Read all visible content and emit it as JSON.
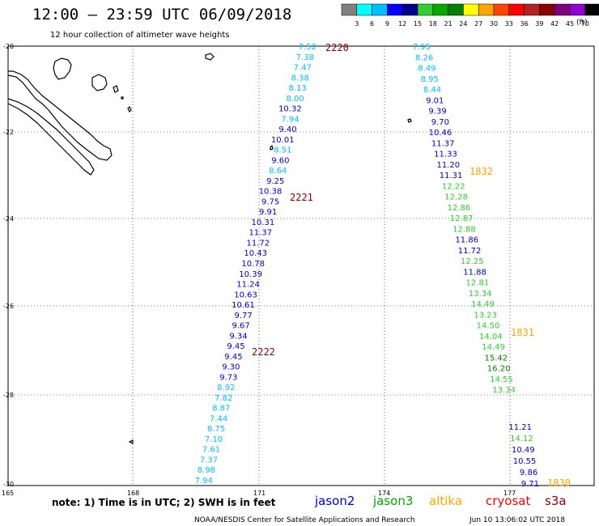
{
  "title": "12:00 – 23:59 UTC 06/09/2018",
  "subtitle": "12 hour collection of altimeter wave heights",
  "legend": {
    "unit": "(ft)",
    "colors": [
      "#808080",
      "#00ffff",
      "#00bfff",
      "#0000ff",
      "#00008b",
      "#32cd32",
      "#00aa00",
      "#008000",
      "#ffff00",
      "#ffa500",
      "#ff4500",
      "#ff0000",
      "#b22222",
      "#8b0000",
      "#800080",
      "#9400d3",
      "#000000"
    ],
    "labels": [
      "3",
      "6",
      "9",
      "12",
      "15",
      "18",
      "21",
      "24",
      "27",
      "30",
      "33",
      "36",
      "39",
      "42",
      "45",
      "70"
    ]
  },
  "axes": {
    "lat_labels": [
      "-20",
      "-22",
      "-24",
      "-26",
      "-28",
      "-30"
    ],
    "lon_labels": [
      "165",
      "168",
      "171",
      "174",
      "177"
    ]
  },
  "track_a": {
    "color_key": "jason2",
    "values": [
      {
        "v": "7.52",
        "c": "#00bfff"
      },
      {
        "v": "7.38",
        "c": "#00bfff"
      },
      {
        "v": "7.47",
        "c": "#00bfff"
      },
      {
        "v": "8.38",
        "c": "#00bfff"
      },
      {
        "v": "8.13",
        "c": "#00bfff"
      },
      {
        "v": "8.00",
        "c": "#00bfff"
      },
      {
        "v": "10.32",
        "c": "#0000cd"
      },
      {
        "v": "7.94",
        "c": "#00bfff"
      },
      {
        "v": "9.40",
        "c": "#0000cd"
      },
      {
        "v": "10.01",
        "c": "#0000cd"
      },
      {
        "v": "8.51",
        "c": "#00bfff"
      },
      {
        "v": "9.60",
        "c": "#0000cd"
      },
      {
        "v": "8.64",
        "c": "#00bfff"
      },
      {
        "v": "9.25",
        "c": "#0000cd"
      },
      {
        "v": "10.38",
        "c": "#0000cd"
      },
      {
        "v": "9.75",
        "c": "#0000cd"
      },
      {
        "v": "9.91",
        "c": "#0000cd"
      },
      {
        "v": "10.31",
        "c": "#0000cd"
      },
      {
        "v": "11.37",
        "c": "#0000cd"
      },
      {
        "v": "11.72",
        "c": "#0000cd"
      },
      {
        "v": "10.43",
        "c": "#0000cd"
      },
      {
        "v": "10.78",
        "c": "#0000cd"
      },
      {
        "v": "10.39",
        "c": "#0000cd"
      },
      {
        "v": "11.24",
        "c": "#0000cd"
      },
      {
        "v": "10.63",
        "c": "#0000cd"
      },
      {
        "v": "10.61",
        "c": "#0000cd"
      },
      {
        "v": "9.77",
        "c": "#0000cd"
      },
      {
        "v": "9.67",
        "c": "#0000cd"
      },
      {
        "v": "9.34",
        "c": "#0000cd"
      },
      {
        "v": "9.45",
        "c": "#0000cd"
      },
      {
        "v": "9.45",
        "c": "#0000cd"
      },
      {
        "v": "9.30",
        "c": "#0000cd"
      },
      {
        "v": "9.73",
        "c": "#0000cd"
      },
      {
        "v": "8.92",
        "c": "#00bfff"
      },
      {
        "v": "7.82",
        "c": "#00bfff"
      },
      {
        "v": "8.87",
        "c": "#00bfff"
      },
      {
        "v": "7.44",
        "c": "#00bfff"
      },
      {
        "v": "8.75",
        "c": "#00bfff"
      },
      {
        "v": "7.10",
        "c": "#00bfff"
      },
      {
        "v": "7.61",
        "c": "#00bfff"
      },
      {
        "v": "7.37",
        "c": "#00bfff"
      },
      {
        "v": "8.98",
        "c": "#00bfff"
      },
      {
        "v": "7.94",
        "c": "#00bfff"
      }
    ],
    "markers": [
      {
        "text": "2220",
        "color": "#8b0000"
      },
      {
        "text": "2221",
        "color": "#8b0000"
      },
      {
        "text": "2222",
        "color": "#8b0000"
      }
    ]
  },
  "track_b": {
    "values": [
      {
        "v": "7.95",
        "c": "#00bfff"
      },
      {
        "v": "8.26",
        "c": "#00bfff"
      },
      {
        "v": "8.49",
        "c": "#00bfff"
      },
      {
        "v": "8.95",
        "c": "#00bfff"
      },
      {
        "v": "8.44",
        "c": "#00bfff"
      },
      {
        "v": "9.01",
        "c": "#0000cd"
      },
      {
        "v": "9.39",
        "c": "#0000cd"
      },
      {
        "v": "9.70",
        "c": "#0000cd"
      },
      {
        "v": "10.46",
        "c": "#0000cd"
      },
      {
        "v": "11.37",
        "c": "#0000cd"
      },
      {
        "v": "11.33",
        "c": "#0000cd"
      },
      {
        "v": "11.20",
        "c": "#0000cd"
      },
      {
        "v": "11.31",
        "c": "#0000cd"
      },
      {
        "v": "12.22",
        "c": "#32cd32"
      },
      {
        "v": "12.28",
        "c": "#32cd32"
      },
      {
        "v": "12.86",
        "c": "#32cd32"
      },
      {
        "v": "12.87",
        "c": "#32cd32"
      },
      {
        "v": "12.88",
        "c": "#32cd32"
      },
      {
        "v": "11.86",
        "c": "#0000cd"
      },
      {
        "v": "11.72",
        "c": "#0000cd"
      },
      {
        "v": "12.25",
        "c": "#32cd32"
      },
      {
        "v": "11.88",
        "c": "#0000cd"
      },
      {
        "v": "12.81",
        "c": "#32cd32"
      },
      {
        "v": "13.34",
        "c": "#32cd32"
      },
      {
        "v": "14.49",
        "c": "#32cd32"
      },
      {
        "v": "13.23",
        "c": "#32cd32"
      },
      {
        "v": "14.50",
        "c": "#32cd32"
      },
      {
        "v": "14.04",
        "c": "#32cd32"
      },
      {
        "v": "14.49",
        "c": "#32cd32"
      },
      {
        "v": "15.42",
        "c": "#008000"
      },
      {
        "v": "16.20",
        "c": "#008000"
      },
      {
        "v": "14.55",
        "c": "#32cd32"
      },
      {
        "v": "13.34",
        "c": "#32cd32"
      }
    ],
    "markers": [
      {
        "text": "1832",
        "color": "#ffa500"
      },
      {
        "text": "1831",
        "color": "#ffa500"
      }
    ]
  },
  "track_c": {
    "values": [
      {
        "v": "11.21",
        "c": "#0000cd"
      },
      {
        "v": "14.12",
        "c": "#32cd32"
      },
      {
        "v": "10.49",
        "c": "#0000cd"
      },
      {
        "v": "10.55",
        "c": "#0000cd"
      },
      {
        "v": "9.86",
        "c": "#0000cd"
      },
      {
        "v": "9.71",
        "c": "#0000cd"
      }
    ],
    "markers": [
      {
        "text": "1830",
        "color": "#ffa500"
      }
    ]
  },
  "note": "note: 1) Time is in UTC; 2) SWH is in feet",
  "satellites": [
    {
      "name": "jason2",
      "color": "#0000cd"
    },
    {
      "name": "jason3",
      "color": "#00aa00"
    },
    {
      "name": "altika",
      "color": "#ffa500"
    },
    {
      "name": "cryosat",
      "color": "#ff0000"
    },
    {
      "name": "s3a",
      "color": "#8b0000"
    }
  ],
  "footer_left": "NOAA/NESDIS Center for Satellite Applications and Research",
  "footer_right": "Jun 10 13:06:02 UTC 2018"
}
